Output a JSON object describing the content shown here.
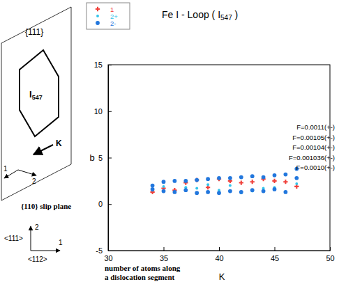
{
  "chart_data": {
    "type": "scatter",
    "title": [
      "Fe  I - Loop ( I",
      "547",
      " )"
    ],
    "xlabel": "K",
    "ylabel": "b",
    "xlim": [
      30,
      50
    ],
    "xticks": [
      30,
      35,
      40,
      45,
      50
    ],
    "ylim": [
      -5,
      15
    ],
    "yticks": [
      -5,
      0,
      5,
      10,
      15
    ],
    "legend": "top-left",
    "series": [
      {
        "name": "1",
        "color": "#f0403a",
        "marker": "cross",
        "x": [
          34,
          35,
          36,
          37,
          38,
          39,
          40,
          41,
          42,
          43,
          44,
          45,
          46,
          47
        ],
        "values": [
          1.3,
          1.7,
          1.5,
          2.3,
          2.6,
          1.8,
          2.7,
          2.5,
          2.3,
          2.4,
          2.7,
          2.5,
          2.4,
          1.9
        ]
      },
      {
        "name": "2+",
        "color": "#33c4ea",
        "marker": "circle",
        "x": [
          34,
          35,
          36,
          37,
          38,
          39,
          40,
          41,
          42,
          43,
          44,
          45,
          46,
          47
        ],
        "values": [
          1.5,
          1.9,
          1.3,
          1.8,
          1.7,
          2.1,
          1.5,
          2.0,
          1.2,
          1.4,
          1.7,
          1.8,
          1.3,
          2.2
        ]
      },
      {
        "name": "2-",
        "color": "#2277dd",
        "marker": "circle",
        "x": [
          34,
          35,
          36,
          37,
          38,
          39,
          40,
          41,
          42,
          43,
          44,
          45,
          46,
          47,
          34,
          35,
          36,
          37,
          38,
          39,
          40,
          41,
          42,
          43,
          44,
          45,
          46,
          47
        ],
        "values": [
          2.0,
          2.4,
          2.5,
          2.5,
          2.6,
          2.7,
          2.8,
          2.8,
          2.9,
          3.0,
          2.9,
          3.1,
          3.2,
          3.8,
          1.6,
          1.4,
          1.3,
          1.5,
          1.2,
          1.3,
          1.2,
          1.4,
          1.3,
          1.5,
          1.4,
          1.6,
          1.3,
          2.8
        ]
      }
    ],
    "annotations": [
      "F=0.0011(+-)",
      "F=0.00105(+-)",
      "F=0.00104(+-)",
      "F=0.001036(+-)",
      "F=0.0010(+-)"
    ]
  },
  "diagram": {
    "plane": "{111}",
    "loop": [
      "I",
      "547"
    ],
    "direction": "K",
    "in_plane_axes": [
      "1",
      "2"
    ],
    "slip_plane": "{110} slip plane",
    "axes": [
      "1",
      "2"
    ],
    "axis_names": [
      "<112>",
      "<111>"
    ],
    "caption": [
      "number of atoms along",
      "a dislocation segment"
    ]
  }
}
